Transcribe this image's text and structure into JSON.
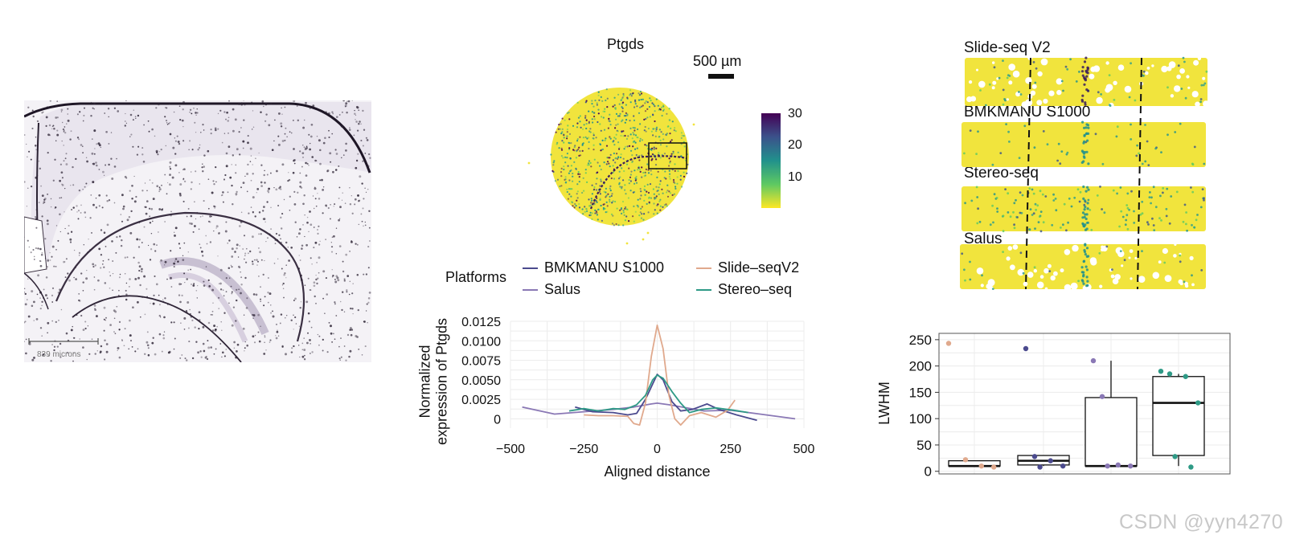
{
  "histology": {
    "scale_label": "839 microns"
  },
  "spatial_map": {
    "title": "Ptgds",
    "scale_bar_label": "500 µm",
    "colorbar_ticks": [
      "30",
      "20",
      "10"
    ],
    "colors": {
      "low": "#f1e43d",
      "mid": "#2a9d8f",
      "high": "#3b1f5c"
    }
  },
  "strips": {
    "labels": [
      "Slide-seq V2",
      "BMKMANU S1000",
      "Stereo-seq",
      "Salus"
    ]
  },
  "legend": {
    "title": "Platforms",
    "entries": [
      {
        "label": "BMKMANU S1000",
        "color": "#4b4a8e"
      },
      {
        "label": "Slide–seqV2",
        "color": "#e0a98d"
      },
      {
        "label": "Salus",
        "color": "#8a78b5"
      },
      {
        "label": "Stereo–seq",
        "color": "#2e9a86"
      }
    ]
  },
  "chart_data": [
    {
      "type": "line",
      "title": "",
      "xlabel": "Aligned distance",
      "ylabel": "Normalized expression of Ptgds",
      "xlim": [
        -500,
        500
      ],
      "ylim": [
        -0.0012,
        0.0125
      ],
      "xticks": [
        "−500",
        "−250",
        "0",
        "250",
        "500"
      ],
      "yticks": [
        "0.0125",
        "0.0100",
        "0.0075",
        "0.0050",
        "0.0025",
        "0"
      ],
      "series": [
        {
          "name": "Salus",
          "color": "#8a78b5",
          "points": [
            [
              -460,
              0.0015
            ],
            [
              -350,
              0.0006
            ],
            [
              -250,
              0.0009
            ],
            [
              -150,
              0.0012
            ],
            [
              -80,
              0.0015
            ],
            [
              -20,
              0.0019
            ],
            [
              0,
              0.002
            ],
            [
              40,
              0.0018
            ],
            [
              100,
              0.0014
            ],
            [
              160,
              0.001
            ],
            [
              250,
              0.0011
            ],
            [
              350,
              0.0006
            ],
            [
              470,
              0.0
            ]
          ]
        },
        {
          "name": "BMKMANU S1000",
          "color": "#4b4a8e",
          "points": [
            [
              -280,
              0.0015
            ],
            [
              -220,
              0.0009
            ],
            [
              -150,
              0.0008
            ],
            [
              -100,
              0.0005
            ],
            [
              -70,
              0.0007
            ],
            [
              -40,
              0.0025
            ],
            [
              -15,
              0.0045
            ],
            [
              0,
              0.0057
            ],
            [
              20,
              0.005
            ],
            [
              50,
              0.0022
            ],
            [
              80,
              0.001
            ],
            [
              120,
              0.0012
            ],
            [
              170,
              0.0019
            ],
            [
              210,
              0.0012
            ],
            [
              270,
              0.0005
            ],
            [
              340,
              -0.0002
            ]
          ]
        },
        {
          "name": "Slide–seqV2",
          "color": "#e0a98d",
          "points": [
            [
              -250,
              0.0005
            ],
            [
              -200,
              0.0004
            ],
            [
              -150,
              0.0004
            ],
            [
              -100,
              0.0003
            ],
            [
              -80,
              -0.0006
            ],
            [
              -60,
              -0.0008
            ],
            [
              -40,
              0.002
            ],
            [
              -20,
              0.008
            ],
            [
              0,
              0.012
            ],
            [
              20,
              0.009
            ],
            [
              40,
              0.003
            ],
            [
              60,
              0.0
            ],
            [
              80,
              -0.0008
            ],
            [
              110,
              0.0004
            ],
            [
              150,
              0.0008
            ],
            [
              200,
              0.0002
            ],
            [
              240,
              0.0011
            ],
            [
              265,
              0.0024
            ]
          ]
        },
        {
          "name": "Stereo–seq",
          "color": "#2e9a86",
          "points": [
            [
              -300,
              0.001
            ],
            [
              -250,
              0.0013
            ],
            [
              -200,
              0.001
            ],
            [
              -150,
              0.0013
            ],
            [
              -110,
              0.0012
            ],
            [
              -70,
              0.0018
            ],
            [
              -40,
              0.003
            ],
            [
              -15,
              0.005
            ],
            [
              0,
              0.0056
            ],
            [
              20,
              0.0052
            ],
            [
              50,
              0.0035
            ],
            [
              80,
              0.002
            ],
            [
              110,
              0.0008
            ],
            [
              150,
              0.0012
            ],
            [
              200,
              0.0014
            ],
            [
              260,
              0.0011
            ],
            [
              310,
              0.0008
            ]
          ]
        }
      ]
    },
    {
      "type": "box",
      "title": "",
      "xlabel": "",
      "ylabel": "LWHM",
      "ylim": [
        -5,
        262
      ],
      "yticks": [
        "250",
        "200",
        "150",
        "100",
        "50",
        "0"
      ],
      "groups": [
        {
          "name": "Slide–seqV2",
          "color": "#e0a98d",
          "q1": 10,
          "median": 10,
          "q3": 20,
          "whisker_low": 10,
          "whisker_high": 20,
          "points": [
            243,
            22,
            10,
            8
          ]
        },
        {
          "name": "BMKMANU S1000",
          "color": "#4b4a8e",
          "q1": 12,
          "median": 20,
          "q3": 30,
          "whisker_low": 10,
          "whisker_high": 30,
          "points": [
            233,
            28,
            20,
            10,
            8
          ]
        },
        {
          "name": "Salus",
          "color": "#8a78b5",
          "q1": 10,
          "median": 10,
          "q3": 140,
          "whisker_low": 10,
          "whisker_high": 210,
          "points": [
            210,
            142,
            12,
            10,
            10
          ]
        },
        {
          "name": "Stereo–seq",
          "color": "#2e9a86",
          "q1": 30,
          "median": 130,
          "q3": 180,
          "whisker_low": 10,
          "whisker_high": 185,
          "points": [
            190,
            185,
            180,
            130,
            28,
            8
          ]
        }
      ]
    }
  ],
  "watermark": "CSDN @yyn4270"
}
